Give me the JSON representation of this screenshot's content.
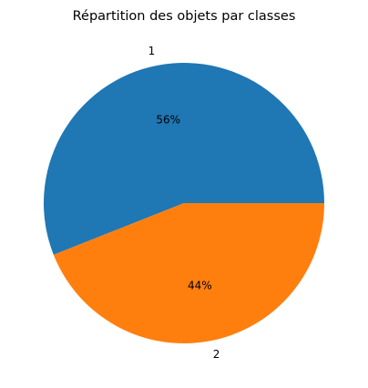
{
  "chart_data": {
    "type": "pie",
    "title": "Répartition des objets par classes",
    "slices": [
      {
        "label": "1",
        "value": 56,
        "pct_label": "56%",
        "color": "#1f77b4"
      },
      {
        "label": "2",
        "value": 44,
        "pct_label": "44%",
        "color": "#ff7f0e"
      }
    ],
    "start_angle_deg": 0,
    "direction": "counterclockwise",
    "legend": "none"
  }
}
